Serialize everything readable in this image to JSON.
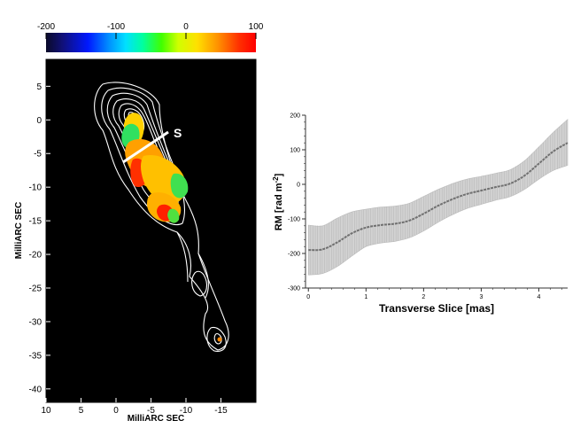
{
  "chart_data": [
    {
      "type": "heatmap",
      "colorbar": {
        "ticks": [
          -200,
          -100,
          0,
          100
        ],
        "tick_labels": [
          "-200",
          "-100",
          "0",
          "100"
        ],
        "range": [
          -200,
          100
        ]
      },
      "xlabel": "MilliARC SEC",
      "ylabel": "MilliARC SEC",
      "x_ticks": [
        "10",
        "5",
        "0",
        "-5",
        "-10",
        "-15"
      ],
      "y_ticks": [
        "5",
        "0",
        "-5",
        "-10",
        "-15",
        "-20",
        "-25",
        "-30",
        "-35",
        "-40"
      ],
      "xlim": [
        10,
        -20
      ],
      "ylim": [
        -42,
        9
      ],
      "slice_label": "S",
      "background": "#000000",
      "contour_color": "#ffffff"
    },
    {
      "type": "line",
      "xlabel": "Transverse Slice [mas]",
      "ylabel": "RM [rad m",
      "ylabel_sup": "-2",
      "ylabel_end": "]",
      "x_ticks": [
        "0",
        "1",
        "2",
        "3",
        "4"
      ],
      "y_ticks": [
        "200",
        "100",
        "0",
        "-100",
        "-200",
        "-300"
      ],
      "xlim": [
        -0.05,
        4.5
      ],
      "ylim": [
        -300,
        200
      ],
      "series": [
        {
          "x": [
            0,
            0.25,
            0.5,
            0.75,
            1.0,
            1.25,
            1.5,
            1.75,
            2.0,
            2.25,
            2.5,
            2.75,
            3.0,
            3.25,
            3.5,
            3.75,
            4.0,
            4.25,
            4.5
          ],
          "y": [
            -190,
            -188,
            -168,
            -142,
            -125,
            -118,
            -114,
            -105,
            -85,
            -62,
            -43,
            -28,
            -18,
            -8,
            2,
            25,
            60,
            95,
            120
          ],
          "err_low": [
            -262,
            -258,
            -238,
            -208,
            -180,
            -170,
            -165,
            -155,
            -135,
            -110,
            -88,
            -70,
            -58,
            -46,
            -36,
            -15,
            15,
            40,
            55
          ],
          "err_high": [
            -118,
            -120,
            -98,
            -80,
            -72,
            -66,
            -63,
            -55,
            -35,
            -15,
            2,
            15,
            23,
            32,
            42,
            68,
            108,
            150,
            188
          ]
        }
      ]
    }
  ]
}
